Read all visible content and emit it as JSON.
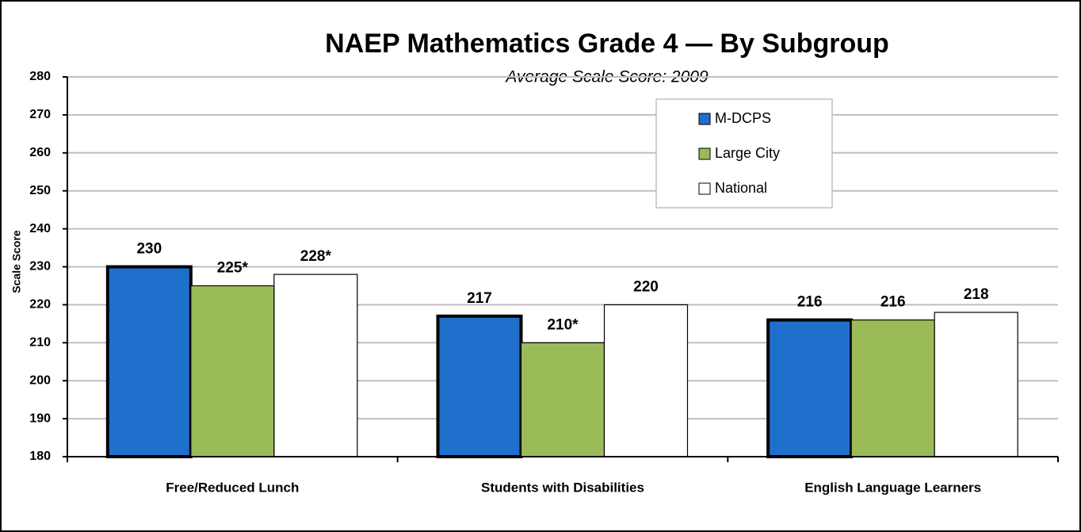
{
  "chart_data": {
    "type": "bar",
    "title": "NAEP Mathematics Grade 4 —  By Subgroup",
    "subtitle": "Average Scale Score: 2009",
    "y_label": "Scale Score",
    "categories": [
      "Free/Reduced Lunch",
      "Students with Disabilities",
      "English Language Learners"
    ],
    "series": [
      {
        "name": "M-DCPS",
        "color": "#1f6fcc",
        "values": [
          230,
          217,
          216
        ],
        "value_labels": [
          "230",
          "217",
          "216"
        ]
      },
      {
        "name": "Large City",
        "color": "#9bbb59",
        "values": [
          225,
          210,
          216
        ],
        "value_labels": [
          "225*",
          "210*",
          "216"
        ]
      },
      {
        "name": "National",
        "color": "#ffffff",
        "values": [
          228,
          220,
          218
        ],
        "value_labels": [
          "228*",
          "220",
          "218"
        ]
      }
    ],
    "ylim": [
      180,
      280
    ],
    "yticks": [
      180,
      190,
      200,
      210,
      220,
      230,
      240,
      250,
      260,
      270,
      280
    ],
    "grid": true
  }
}
